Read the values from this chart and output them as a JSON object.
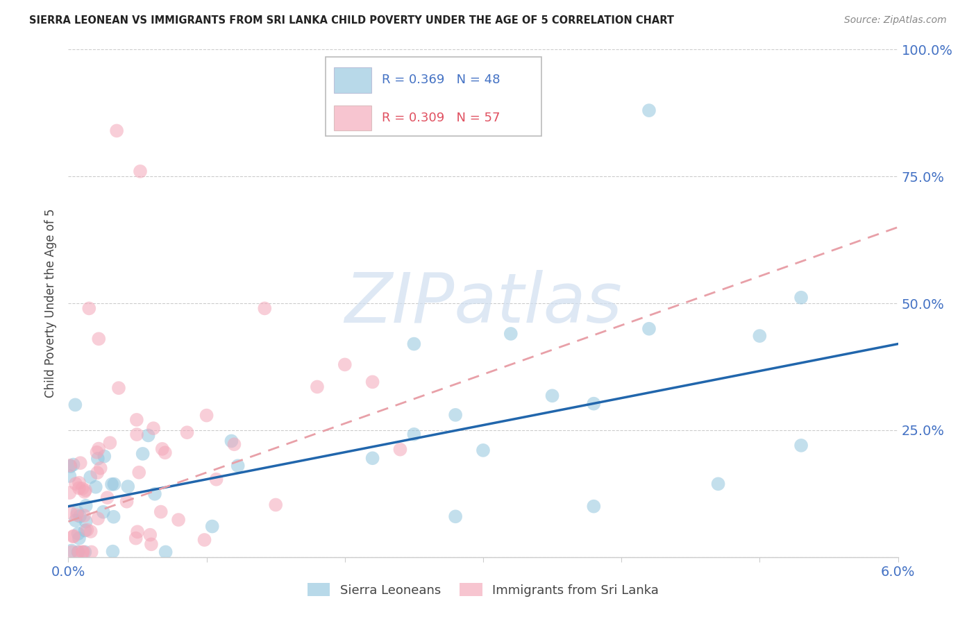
{
  "title": "SIERRA LEONEAN VS IMMIGRANTS FROM SRI LANKA CHILD POVERTY UNDER THE AGE OF 5 CORRELATION CHART",
  "source": "Source: ZipAtlas.com",
  "ylabel": "Child Poverty Under the Age of 5",
  "xlim": [
    0.0,
    6.0
  ],
  "ylim": [
    0.0,
    1.0
  ],
  "color_blue": "#92c5de",
  "color_pink": "#f4a6b8",
  "color_blue_line": "#2166ac",
  "color_pink_line": "#e8505a",
  "color_pink_dash": "#e8a0a8",
  "watermark_color": "#d0dff0",
  "grid_color": "#cccccc",
  "right_tick_color": "#4472c4",
  "title_color": "#222222",
  "source_color": "#888888"
}
